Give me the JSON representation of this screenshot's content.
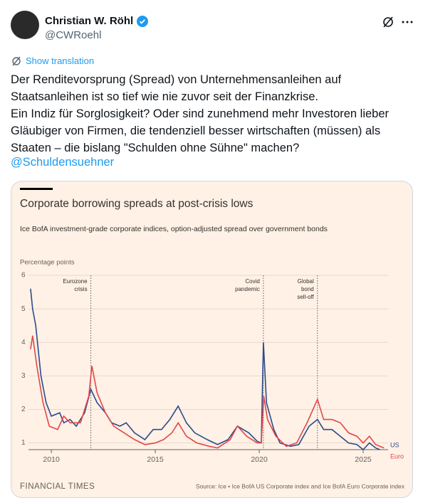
{
  "tweet": {
    "author": "Christian W. Röhl",
    "handle": "@CWRoehl",
    "translate": "Show translation",
    "lines": [
      "Der Renditevorsprung (Spread) von Unternehmensanleihen auf",
      "Staatsanleihen ist so tief wie nie zuvor seit der Finanzkrise.",
      "Ein Indiz für Sorglosigkeit? Oder sind zunehmend mehr Investoren lieber",
      "Gläubiger von Firmen, die tendenziell besser wirtschaften (müssen) als",
      "Staaten – die bislang \"Schulden ohne Sühne\" machen?"
    ],
    "mention": "@Schuldensuehner"
  },
  "chart_data": {
    "type": "line",
    "title": "Corporate borrowing spreads at post-crisis lows",
    "subtitle": "Ice BofA investment-grade corporate indices, option-adjusted spread over government bonds",
    "y_label": "Percentage points",
    "xlim": [
      2008.9,
      2026.2
    ],
    "ylim": [
      0.8,
      6
    ],
    "xticks": [
      2010,
      2015,
      2020,
      2025
    ],
    "yticks": [
      1,
      2,
      3,
      4,
      5,
      6
    ],
    "grid": true,
    "annotations": [
      {
        "x": 2011.9,
        "label": [
          "Eurozone",
          "crisis"
        ]
      },
      {
        "x": 2020.2,
        "label": [
          "Covid",
          "pandemic"
        ]
      },
      {
        "x": 2022.8,
        "label": [
          "Global",
          "bond",
          "sell-off"
        ]
      }
    ],
    "series": [
      {
        "name": "US",
        "color": "#2c4a8c",
        "x": [
          2009.0,
          2009.1,
          2009.25,
          2009.5,
          2009.75,
          2010.0,
          2010.4,
          2010.6,
          2010.9,
          2011.2,
          2011.6,
          2011.9,
          2012.2,
          2012.6,
          2012.9,
          2013.3,
          2013.6,
          2014.0,
          2014.5,
          2014.9,
          2015.3,
          2015.7,
          2016.1,
          2016.5,
          2016.9,
          2017.5,
          2018.0,
          2018.5,
          2018.95,
          2019.5,
          2019.9,
          2020.1,
          2020.2,
          2020.35,
          2020.7,
          2021.0,
          2021.5,
          2021.9,
          2022.4,
          2022.8,
          2023.1,
          2023.5,
          2023.9,
          2024.3,
          2024.7,
          2025.0,
          2025.3,
          2025.6,
          2025.8
        ],
        "values": [
          5.6,
          5.0,
          4.5,
          3.0,
          2.2,
          1.8,
          1.9,
          1.6,
          1.7,
          1.5,
          1.9,
          2.6,
          2.2,
          1.9,
          1.6,
          1.5,
          1.6,
          1.3,
          1.1,
          1.4,
          1.4,
          1.7,
          2.1,
          1.6,
          1.3,
          1.1,
          0.95,
          1.1,
          1.5,
          1.3,
          1.05,
          1.0,
          4.0,
          2.2,
          1.4,
          1.0,
          0.9,
          0.95,
          1.5,
          1.7,
          1.4,
          1.4,
          1.2,
          1.0,
          0.95,
          0.8,
          1.0,
          0.85,
          0.8
        ]
      },
      {
        "name": "Euro",
        "color": "#e2474b",
        "x": [
          2009.0,
          2009.1,
          2009.3,
          2009.6,
          2009.9,
          2010.3,
          2010.6,
          2010.9,
          2011.4,
          2011.8,
          2011.95,
          2012.2,
          2012.6,
          2013.0,
          2013.5,
          2014.0,
          2014.5,
          2015.0,
          2015.4,
          2015.8,
          2016.1,
          2016.5,
          2017.0,
          2017.6,
          2018.0,
          2018.6,
          2018.95,
          2019.4,
          2019.9,
          2020.1,
          2020.22,
          2020.4,
          2020.8,
          2021.3,
          2021.8,
          2022.3,
          2022.8,
          2023.1,
          2023.5,
          2023.9,
          2024.3,
          2024.7,
          2025.0,
          2025.3,
          2025.6,
          2026.0
        ],
        "values": [
          3.8,
          4.2,
          3.3,
          2.2,
          1.5,
          1.4,
          1.8,
          1.6,
          1.6,
          2.4,
          3.3,
          2.5,
          1.9,
          1.5,
          1.3,
          1.1,
          0.95,
          1.0,
          1.1,
          1.3,
          1.6,
          1.2,
          1.0,
          0.9,
          0.85,
          1.1,
          1.5,
          1.2,
          1.0,
          1.0,
          2.4,
          1.7,
          1.2,
          0.9,
          1.0,
          1.6,
          2.3,
          1.7,
          1.7,
          1.6,
          1.3,
          1.2,
          1.0,
          1.2,
          0.95,
          0.85
        ]
      }
    ],
    "brand": "FINANCIAL TIMES",
    "source": "Source: Ice • Ice BofA US Corporate index and Ice BofA Euro Corporate index"
  }
}
